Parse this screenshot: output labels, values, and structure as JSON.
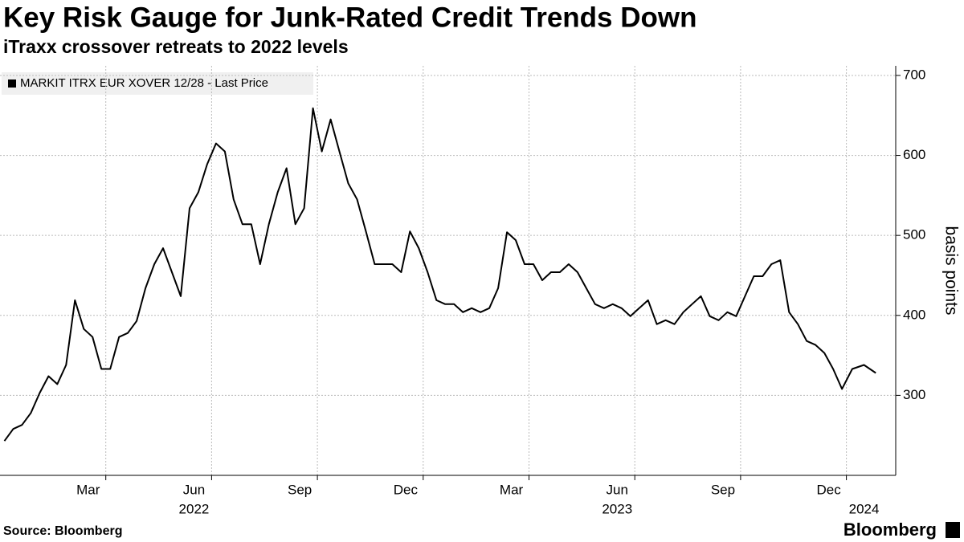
{
  "chart_data": {
    "type": "line",
    "title": "Key Risk Gauge for Junk-Rated Credit Trends Down",
    "subtitle": "iTraxx crossover retreats to 2022 levels",
    "ylabel": "basis points",
    "source": "Source: Bloomberg",
    "brand": "Bloomberg",
    "x": [
      "2022-01",
      "2022-01",
      "2022-01",
      "2022-01",
      "2022-02",
      "2022-02",
      "2022-02",
      "2022-02",
      "2022-03",
      "2022-03",
      "2022-03",
      "2022-03",
      "2022-04",
      "2022-04",
      "2022-04",
      "2022-04",
      "2022-05",
      "2022-05",
      "2022-05",
      "2022-05",
      "2022-06",
      "2022-06",
      "2022-06",
      "2022-06",
      "2022-07",
      "2022-07",
      "2022-07",
      "2022-07",
      "2022-08",
      "2022-08",
      "2022-08",
      "2022-08",
      "2022-09",
      "2022-09",
      "2022-09",
      "2022-09",
      "2022-10",
      "2022-10",
      "2022-10",
      "2022-10",
      "2022-11",
      "2022-11",
      "2022-11",
      "2022-11",
      "2022-12",
      "2022-12",
      "2022-12",
      "2022-12",
      "2023-01",
      "2023-01",
      "2023-01",
      "2023-01",
      "2023-02",
      "2023-02",
      "2023-02",
      "2023-02",
      "2023-03",
      "2023-03",
      "2023-03",
      "2023-03",
      "2023-04",
      "2023-04",
      "2023-04",
      "2023-04",
      "2023-05",
      "2023-05",
      "2023-05",
      "2023-05",
      "2023-06",
      "2023-06",
      "2023-06",
      "2023-06",
      "2023-07",
      "2023-07",
      "2023-07",
      "2023-07",
      "2023-08",
      "2023-08",
      "2023-08",
      "2023-08",
      "2023-09",
      "2023-09",
      "2023-09",
      "2023-09",
      "2023-10",
      "2023-10",
      "2023-10",
      "2023-10",
      "2023-11",
      "2023-11",
      "2023-11",
      "2023-11",
      "2023-12",
      "2023-12",
      "2023-12",
      "2023-12",
      "2024-01",
      "2024-01",
      "2024-01"
    ],
    "series": [
      {
        "name": "MARKIT ITRX EUR XOVER 12/28 - Last Price",
        "color": "#000000",
        "values": [
          243,
          258,
          263,
          278,
          303,
          324,
          314,
          338,
          419,
          383,
          373,
          333,
          333,
          373,
          378,
          393,
          434,
          464,
          484,
          454,
          424,
          534,
          554,
          589,
          615,
          605,
          545,
          514,
          514,
          464,
          514,
          554,
          584,
          514,
          534,
          659,
          605,
          645,
          605,
          565,
          545,
          505,
          464,
          464,
          464,
          454,
          505,
          484,
          454,
          419,
          414,
          414,
          404,
          409,
          404,
          409,
          434,
          504,
          494,
          464,
          464,
          444,
          454,
          454,
          464,
          454,
          434,
          414,
          409,
          414,
          409,
          399,
          409,
          419,
          389,
          394,
          389,
          404,
          414,
          424,
          399,
          394,
          404,
          399,
          424,
          449,
          449,
          464,
          469,
          404,
          389,
          368,
          363,
          353,
          333,
          308,
          333,
          338,
          328
        ]
      }
    ],
    "xticks": [
      {
        "value": "2022-03",
        "label": "Mar"
      },
      {
        "value": "2022-06",
        "label": "Jun"
      },
      {
        "value": "2022-09",
        "label": "Sep"
      },
      {
        "value": "2022-12",
        "label": "Dec"
      },
      {
        "value": "2023-03",
        "label": "Mar"
      },
      {
        "value": "2023-06",
        "label": "Jun"
      },
      {
        "value": "2023-09",
        "label": "Sep"
      },
      {
        "value": "2023-12",
        "label": "Dec"
      }
    ],
    "xyears": [
      {
        "value": "2022-06",
        "label": "2022"
      },
      {
        "value": "2023-06",
        "label": "2023"
      },
      {
        "value": "2024-01",
        "label": "2024"
      }
    ],
    "ylim": [
      200,
      712
    ],
    "yticks": [
      300,
      400,
      500,
      600,
      700
    ],
    "grid": true
  }
}
